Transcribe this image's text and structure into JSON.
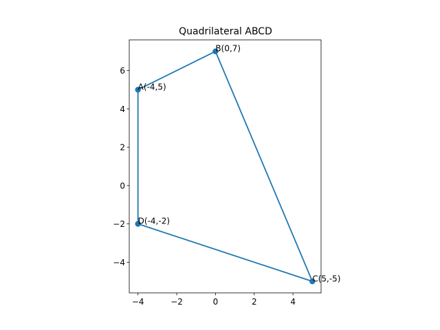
{
  "chart_data": {
    "type": "line",
    "title": "Quadrilateral ABCD",
    "xlabel": "",
    "ylabel": "",
    "xlim": [
      -4.45,
      5.45
    ],
    "ylim": [
      -5.6,
      7.6
    ],
    "xticks": [
      -4,
      -2,
      0,
      2,
      4
    ],
    "yticks": [
      -4,
      -2,
      0,
      2,
      4,
      6
    ],
    "xtick_labels": [
      "−4",
      "−2",
      "0",
      "2",
      "4"
    ],
    "ytick_labels": [
      "−4",
      "−2",
      "0",
      "2",
      "4",
      "6"
    ],
    "grid": false,
    "line_color": "#1f77b4",
    "marker_color": "#1f77b4",
    "points": [
      {
        "label": "A(-4,5)",
        "x": -4,
        "y": 5
      },
      {
        "label": "B(0,7)",
        "x": 0,
        "y": 7
      },
      {
        "label": "C(5,-5)",
        "x": 5,
        "y": -5
      },
      {
        "label": "D(-4,-2)",
        "x": -4,
        "y": -2
      }
    ],
    "closed": true
  }
}
